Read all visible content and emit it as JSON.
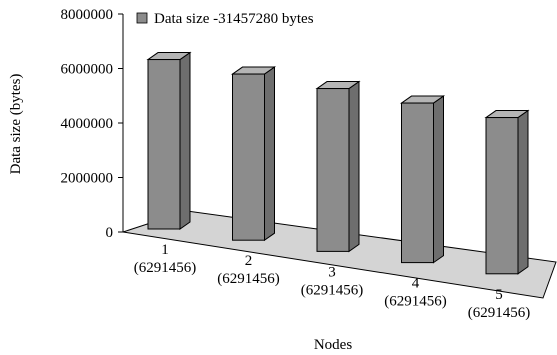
{
  "chart_data": {
    "type": "bar",
    "categories": [
      "1\n(6291456)",
      "2\n(6291456)",
      "3\n(6291456)",
      "4\n(6291456)",
      "5\n(6291456)"
    ],
    "category_labels": [
      {
        "line1": "1",
        "line2": "(6291456)"
      },
      {
        "line1": "2",
        "line2": "(6291456)"
      },
      {
        "line1": "3",
        "line2": "(6291456)"
      },
      {
        "line1": "4",
        "line2": "(6291456)"
      },
      {
        "line1": "5",
        "line2": "(6291456)"
      }
    ],
    "series": [
      {
        "name": "Data size -31457280 bytes",
        "values": [
          6291456,
          6291456,
          6291456,
          6291456,
          6291456
        ]
      }
    ],
    "xlabel": "Nodes",
    "ylabel": "Data size (bytes)",
    "ylim": [
      0,
      8000000
    ],
    "yticks": [
      "0",
      "2000000",
      "4000000",
      "6000000",
      "8000000"
    ],
    "grid": false,
    "legend_position": "top",
    "style": "3d-perspective",
    "colors": {
      "bar_front": "#8c8c8c",
      "bar_top": "#b5b5b5",
      "bar_side": "#6e6e6e",
      "floor": "#d4d4d4"
    }
  }
}
